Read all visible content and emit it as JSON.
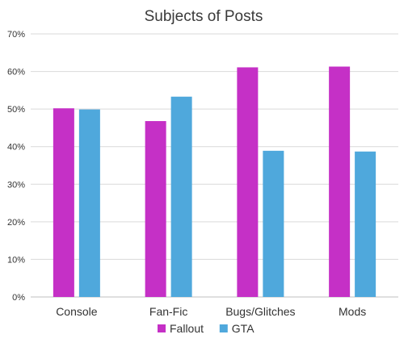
{
  "chart_data": {
    "type": "bar",
    "title": "Subjects of Posts",
    "xlabel": "",
    "ylabel": "",
    "categories": [
      "Console",
      "Fan-Fic",
      "Bugs/Glitches",
      "Mods"
    ],
    "series": [
      {
        "name": "Fallout",
        "color": "#c530c6",
        "values": [
          50.2,
          46.8,
          61.1,
          61.3
        ]
      },
      {
        "name": "GTA",
        "color": "#4fa8dc",
        "values": [
          49.9,
          53.3,
          38.9,
          38.7
        ]
      }
    ],
    "ylim": [
      0,
      70
    ],
    "yticks": [
      0,
      10,
      20,
      30,
      40,
      50,
      60,
      70
    ],
    "ytick_labels": [
      "0%",
      "10%",
      "20%",
      "30%",
      "40%",
      "50%",
      "60%",
      "70%"
    ],
    "grid": true,
    "legend_position": "bottom"
  }
}
